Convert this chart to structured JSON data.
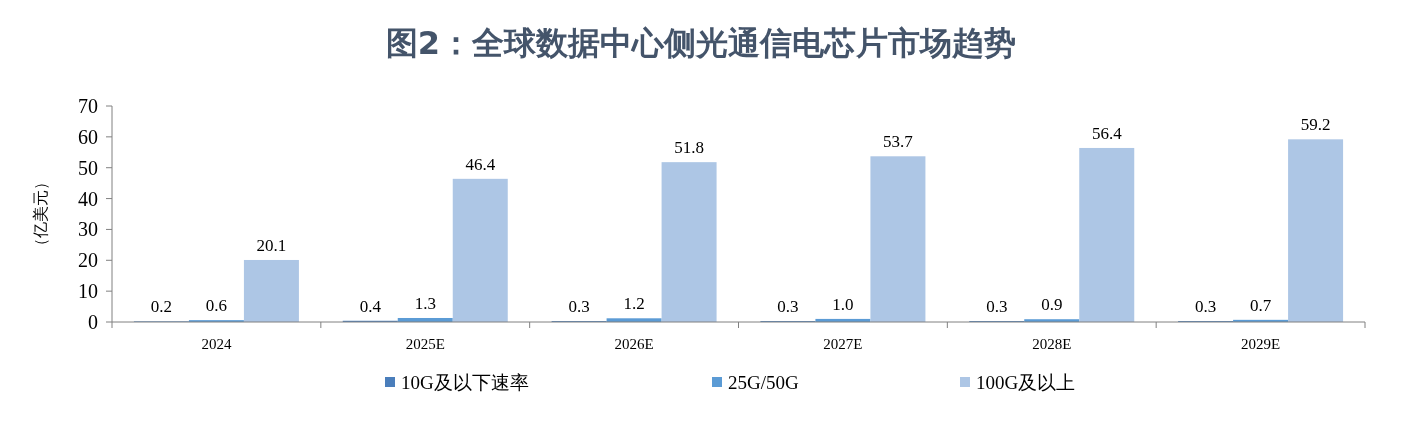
{
  "chart_data": {
    "type": "bar",
    "title": "图2：全球数据中心侧光通信电芯片市场趋势",
    "ylabel": "（亿美元）",
    "categories": [
      "2024",
      "2025E",
      "2026E",
      "2027E",
      "2028E",
      "2029E"
    ],
    "series": [
      {
        "name": "10G及以下速率",
        "color": "#4a7ebb",
        "values": [
          0.2,
          0.4,
          0.3,
          0.3,
          0.3,
          0.3
        ],
        "value_labels": [
          "0.2",
          "0.4",
          "0.3",
          "0.3",
          "0.3",
          "0.3"
        ]
      },
      {
        "name": "25G/50G",
        "color": "#5b9bd5",
        "values": [
          0.6,
          1.3,
          1.2,
          1.0,
          0.9,
          0.7
        ],
        "value_labels": [
          "0.6",
          "1.3",
          "1.2",
          "1.0",
          "0.9",
          "0.7"
        ]
      },
      {
        "name": "100G及以上",
        "color": "#adc6e5",
        "values": [
          20.1,
          46.4,
          51.8,
          53.7,
          56.4,
          59.2
        ],
        "value_labels": [
          "20.1",
          "46.4",
          "51.8",
          "53.7",
          "56.4",
          "59.2"
        ]
      }
    ],
    "ylim": [
      0,
      70
    ],
    "yticks": [
      0,
      10,
      20,
      30,
      40,
      50,
      60,
      70
    ],
    "legend": "bottom",
    "grid": false
  }
}
